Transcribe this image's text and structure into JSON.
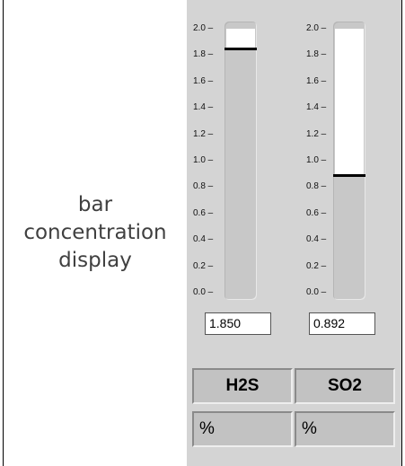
{
  "side_label": "bar concentration display",
  "scale": {
    "min": 0.0,
    "max": 2.0,
    "ticks": [
      "2.0",
      "1.8",
      "1.6",
      "1.4",
      "1.2",
      "1.0",
      "0.8",
      "0.6",
      "0.4",
      "0.2",
      "0.0"
    ]
  },
  "gauges": [
    {
      "name": "H2S",
      "value": 1.85,
      "readout": "1.850",
      "unit": "%"
    },
    {
      "name": "SO2",
      "value": 0.892,
      "readout": "0.892",
      "unit": "%"
    }
  ],
  "colors": {
    "panel": "#d4d4d4",
    "track": "#c8c8c8",
    "fill": "#ffffff",
    "marker": "#000000"
  }
}
